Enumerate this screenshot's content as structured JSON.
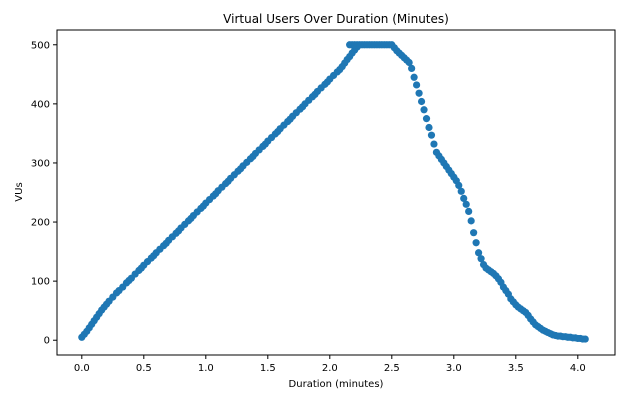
{
  "chart_data": {
    "type": "scatter",
    "title": "Virtual Users Over Duration (Minutes)",
    "xlabel": "Duration (minutes)",
    "ylabel": "VUs",
    "xlim": [
      -0.2,
      4.3
    ],
    "ylim": [
      -25,
      525
    ],
    "xticks": [
      0.0,
      0.5,
      1.0,
      1.5,
      2.0,
      2.5,
      3.0,
      3.5,
      4.0
    ],
    "xtick_labels": [
      "0.0",
      "0.5",
      "1.0",
      "1.5",
      "2.0",
      "2.5",
      "3.0",
      "3.5",
      "4.0"
    ],
    "yticks": [
      0,
      100,
      200,
      300,
      400,
      500
    ],
    "ytick_labels": [
      "0",
      "100",
      "200",
      "300",
      "400",
      "500"
    ],
    "grid": false,
    "legend": "none",
    "colors": {
      "point": "#1f77b4",
      "axes": "#000000",
      "background": "#ffffff"
    },
    "points": [
      [
        0.0,
        5
      ],
      [
        0.02,
        10
      ],
      [
        0.04,
        15
      ],
      [
        0.06,
        21
      ],
      [
        0.08,
        27
      ],
      [
        0.1,
        33
      ],
      [
        0.12,
        39
      ],
      [
        0.14,
        45
      ],
      [
        0.16,
        51
      ],
      [
        0.18,
        56
      ],
      [
        0.2,
        61
      ],
      [
        0.22,
        66
      ],
      [
        0.25,
        73
      ],
      [
        0.28,
        80
      ],
      [
        0.3,
        84
      ],
      [
        0.33,
        90
      ],
      [
        0.36,
        97
      ],
      [
        0.38,
        101
      ],
      [
        0.4,
        105
      ],
      [
        0.43,
        112
      ],
      [
        0.46,
        118
      ],
      [
        0.48,
        122
      ],
      [
        0.5,
        127
      ],
      [
        0.53,
        133
      ],
      [
        0.56,
        139
      ],
      [
        0.58,
        143
      ],
      [
        0.6,
        148
      ],
      [
        0.63,
        154
      ],
      [
        0.66,
        160
      ],
      [
        0.68,
        164
      ],
      [
        0.7,
        169
      ],
      [
        0.73,
        175
      ],
      [
        0.76,
        181
      ],
      [
        0.78,
        185
      ],
      [
        0.8,
        190
      ],
      [
        0.83,
        196
      ],
      [
        0.86,
        202
      ],
      [
        0.88,
        206
      ],
      [
        0.9,
        211
      ],
      [
        0.93,
        217
      ],
      [
        0.96,
        223
      ],
      [
        0.98,
        227
      ],
      [
        1.0,
        232
      ],
      [
        1.03,
        238
      ],
      [
        1.06,
        244
      ],
      [
        1.08,
        248
      ],
      [
        1.1,
        253
      ],
      [
        1.13,
        259
      ],
      [
        1.16,
        265
      ],
      [
        1.18,
        269
      ],
      [
        1.2,
        274
      ],
      [
        1.23,
        280
      ],
      [
        1.26,
        286
      ],
      [
        1.28,
        290
      ],
      [
        1.3,
        295
      ],
      [
        1.33,
        301
      ],
      [
        1.36,
        307
      ],
      [
        1.38,
        311
      ],
      [
        1.4,
        316
      ],
      [
        1.43,
        322
      ],
      [
        1.46,
        328
      ],
      [
        1.48,
        332
      ],
      [
        1.5,
        337
      ],
      [
        1.53,
        343
      ],
      [
        1.56,
        349
      ],
      [
        1.58,
        353
      ],
      [
        1.6,
        358
      ],
      [
        1.63,
        364
      ],
      [
        1.66,
        370
      ],
      [
        1.68,
        374
      ],
      [
        1.7,
        379
      ],
      [
        1.73,
        385
      ],
      [
        1.76,
        391
      ],
      [
        1.78,
        395
      ],
      [
        1.8,
        400
      ],
      [
        1.83,
        406
      ],
      [
        1.86,
        412
      ],
      [
        1.88,
        416
      ],
      [
        1.9,
        421
      ],
      [
        1.93,
        427
      ],
      [
        1.96,
        433
      ],
      [
        1.98,
        437
      ],
      [
        2.0,
        442
      ],
      [
        2.03,
        448
      ],
      [
        2.06,
        454
      ],
      [
        2.08,
        458
      ],
      [
        2.1,
        463
      ],
      [
        2.12,
        469
      ],
      [
        2.14,
        475
      ],
      [
        2.16,
        480
      ],
      [
        2.18,
        486
      ],
      [
        2.2,
        491
      ],
      [
        2.22,
        496
      ],
      [
        2.16,
        500
      ],
      [
        2.18,
        500
      ],
      [
        2.2,
        500
      ],
      [
        2.22,
        500
      ],
      [
        2.24,
        500
      ],
      [
        2.26,
        500
      ],
      [
        2.28,
        500
      ],
      [
        2.3,
        500
      ],
      [
        2.32,
        500
      ],
      [
        2.34,
        500
      ],
      [
        2.36,
        500
      ],
      [
        2.38,
        500
      ],
      [
        2.4,
        500
      ],
      [
        2.42,
        500
      ],
      [
        2.44,
        500
      ],
      [
        2.46,
        500
      ],
      [
        2.48,
        500
      ],
      [
        2.5,
        500
      ],
      [
        2.52,
        495
      ],
      [
        2.54,
        490
      ],
      [
        2.56,
        486
      ],
      [
        2.58,
        482
      ],
      [
        2.6,
        478
      ],
      [
        2.62,
        474
      ],
      [
        2.64,
        470
      ],
      [
        2.66,
        460
      ],
      [
        2.68,
        445
      ],
      [
        2.7,
        432
      ],
      [
        2.72,
        418
      ],
      [
        2.74,
        404
      ],
      [
        2.76,
        390
      ],
      [
        2.78,
        375
      ],
      [
        2.8,
        360
      ],
      [
        2.82,
        347
      ],
      [
        2.84,
        332
      ],
      [
        2.86,
        318
      ],
      [
        2.88,
        312
      ],
      [
        2.9,
        306
      ],
      [
        2.92,
        300
      ],
      [
        2.94,
        294
      ],
      [
        2.96,
        288
      ],
      [
        2.98,
        282
      ],
      [
        3.0,
        276
      ],
      [
        3.02,
        270
      ],
      [
        3.04,
        262
      ],
      [
        3.06,
        252
      ],
      [
        3.08,
        240
      ],
      [
        3.1,
        230
      ],
      [
        3.12,
        218
      ],
      [
        3.14,
        202
      ],
      [
        3.16,
        182
      ],
      [
        3.18,
        165
      ],
      [
        3.2,
        148
      ],
      [
        3.22,
        138
      ],
      [
        3.24,
        128
      ],
      [
        3.26,
        122
      ],
      [
        3.28,
        119
      ],
      [
        3.3,
        116
      ],
      [
        3.32,
        113
      ],
      [
        3.34,
        109
      ],
      [
        3.36,
        104
      ],
      [
        3.38,
        98
      ],
      [
        3.4,
        90
      ],
      [
        3.42,
        84
      ],
      [
        3.44,
        78
      ],
      [
        3.46,
        70
      ],
      [
        3.48,
        65
      ],
      [
        3.5,
        60
      ],
      [
        3.52,
        56
      ],
      [
        3.54,
        53
      ],
      [
        3.56,
        50
      ],
      [
        3.58,
        47
      ],
      [
        3.6,
        42
      ],
      [
        3.62,
        36
      ],
      [
        3.64,
        31
      ],
      [
        3.66,
        26
      ],
      [
        3.68,
        23
      ],
      [
        3.7,
        20
      ],
      [
        3.72,
        17
      ],
      [
        3.74,
        15
      ],
      [
        3.76,
        13
      ],
      [
        3.78,
        11
      ],
      [
        3.8,
        9
      ],
      [
        3.82,
        8
      ],
      [
        3.84,
        7
      ],
      [
        3.86,
        7
      ],
      [
        3.88,
        6
      ],
      [
        3.9,
        6
      ],
      [
        3.92,
        5
      ],
      [
        3.94,
        5
      ],
      [
        3.96,
        4
      ],
      [
        3.98,
        4
      ],
      [
        4.0,
        3
      ],
      [
        4.02,
        3
      ],
      [
        4.04,
        2
      ],
      [
        4.06,
        2
      ]
    ]
  }
}
